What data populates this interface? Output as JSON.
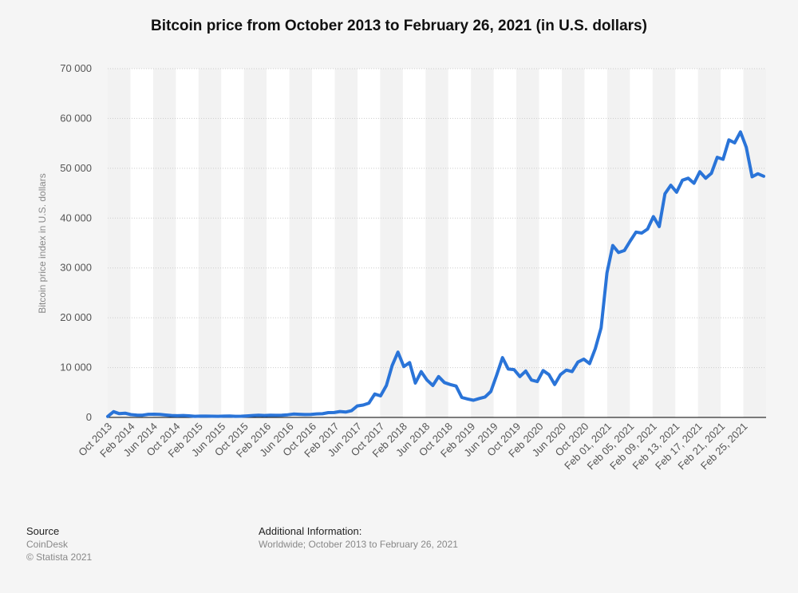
{
  "chart_data": {
    "type": "line",
    "title": "Bitcoin price from October 2013 to February 26, 2021 (in U.S. dollars)",
    "ylabel": "Bitcoin price index in U.S. dollars",
    "xlabel": "",
    "ylim": [
      0,
      70000
    ],
    "yticks": [
      "0",
      "10 000",
      "20 000",
      "30 000",
      "40 000",
      "50 000",
      "60 000",
      "70 000"
    ],
    "grid": true,
    "line_color": "#2a74d8",
    "x_tick_labels": [
      "Oct 2013",
      "Feb 2014",
      "Jun 2014",
      "Oct 2014",
      "Feb 2015",
      "Jun 2015",
      "Oct 2015",
      "Feb 2016",
      "Jun 2016",
      "Oct 2016",
      "Feb 2017",
      "Jun 2017",
      "Oct 2017",
      "Feb 2018",
      "Jun 2018",
      "Oct 2018",
      "Feb 2019",
      "Jun 2019",
      "Oct 2019",
      "Feb 2020",
      "Jun 2020",
      "Oct 2020",
      "Feb 01, 2021",
      "Feb 05, 2021",
      "Feb 09, 2021",
      "Feb 13, 2021",
      "Feb 17, 2021",
      "Feb 21, 2021",
      "Feb 25, 2021"
    ],
    "x": [
      "Oct 2013",
      "Nov 2013",
      "Dec 2013",
      "Jan 2014",
      "Feb 2014",
      "Mar 2014",
      "Apr 2014",
      "May 2014",
      "Jun 2014",
      "Jul 2014",
      "Aug 2014",
      "Sep 2014",
      "Oct 2014",
      "Nov 2014",
      "Dec 2014",
      "Jan 2015",
      "Feb 2015",
      "Mar 2015",
      "Apr 2015",
      "May 2015",
      "Jun 2015",
      "Jul 2015",
      "Aug 2015",
      "Sep 2015",
      "Oct 2015",
      "Nov 2015",
      "Dec 2015",
      "Jan 2016",
      "Feb 2016",
      "Mar 2016",
      "Apr 2016",
      "May 2016",
      "Jun 2016",
      "Jul 2016",
      "Aug 2016",
      "Sep 2016",
      "Oct 2016",
      "Nov 2016",
      "Dec 2016",
      "Jan 2017",
      "Feb 2017",
      "Mar 2017",
      "Apr 2017",
      "May 2017",
      "Jun 2017",
      "Jul 2017",
      "Aug 2017",
      "Sep 2017",
      "Oct 2017",
      "Nov 2017",
      "Dec 2017",
      "Jan 2018",
      "Feb 2018",
      "Mar 2018",
      "Apr 2018",
      "May 2018",
      "Jun 2018",
      "Jul 2018",
      "Aug 2018",
      "Sep 2018",
      "Oct 2018",
      "Nov 2018",
      "Dec 2018",
      "Jan 2019",
      "Feb 2019",
      "Mar 2019",
      "Apr 2019",
      "May 2019",
      "Jun 2019",
      "Jul 2019",
      "Aug 2019",
      "Sep 2019",
      "Oct 2019",
      "Nov 2019",
      "Dec 2019",
      "Jan 2020",
      "Feb 2020",
      "Mar 2020",
      "Apr 2020",
      "May 2020",
      "Jun 2020",
      "Jul 2020",
      "Aug 2020",
      "Sep 2020",
      "Oct 2020",
      "Nov 2020",
      "Dec 2020",
      "Jan 2021",
      "Feb 01, 2021",
      "Feb 02, 2021",
      "Feb 03, 2021",
      "Feb 04, 2021",
      "Feb 05, 2021",
      "Feb 06, 2021",
      "Feb 07, 2021",
      "Feb 08, 2021",
      "Feb 09, 2021",
      "Feb 10, 2021",
      "Feb 11, 2021",
      "Feb 12, 2021",
      "Feb 13, 2021",
      "Feb 14, 2021",
      "Feb 15, 2021",
      "Feb 16, 2021",
      "Feb 17, 2021",
      "Feb 18, 2021",
      "Feb 19, 2021",
      "Feb 20, 2021",
      "Feb 21, 2021",
      "Feb 22, 2021",
      "Feb 23, 2021",
      "Feb 24, 2021",
      "Feb 25, 2021",
      "Feb 26, 2021"
    ],
    "series": [
      {
        "values": [
          200,
          1150,
          750,
          850,
          560,
          460,
          450,
          630,
          640,
          590,
          480,
          390,
          340,
          380,
          320,
          220,
          260,
          250,
          240,
          230,
          260,
          290,
          230,
          240,
          310,
          380,
          430,
          380,
          440,
          420,
          450,
          530,
          670,
          630,
          580,
          610,
          700,
          740,
          960,
          970,
          1190,
          1080,
          1350,
          2300,
          2480,
          2870,
          4700,
          4330,
          6400,
          10400,
          13100,
          10200,
          11000,
          6900,
          9200,
          7500,
          6400,
          8200,
          7000,
          6600,
          6300,
          4000,
          3700,
          3450,
          3800,
          4100,
          5200,
          8500,
          12000,
          9700,
          9600,
          8200,
          9300,
          7500,
          7200,
          9400,
          8600,
          6600,
          8600,
          9500,
          9200,
          11100,
          11700,
          10800,
          13800,
          18000,
          29000,
          34500,
          33100,
          33500,
          35400,
          37200,
          37000,
          37800,
          40300,
          38300,
          44900,
          46600,
          45200,
          47600,
          48000,
          47000,
          49300,
          48000,
          49000,
          52200,
          51800,
          55700,
          55100,
          57300,
          54200,
          48300,
          48900,
          48400
        ]
      }
    ]
  },
  "footer": {
    "source_heading": "Source",
    "source_name": "CoinDesk",
    "copyright": "© Statista 2021",
    "info_heading": "Additional Information:",
    "info_text": "Worldwide; October 2013 to February 26, 2021"
  }
}
